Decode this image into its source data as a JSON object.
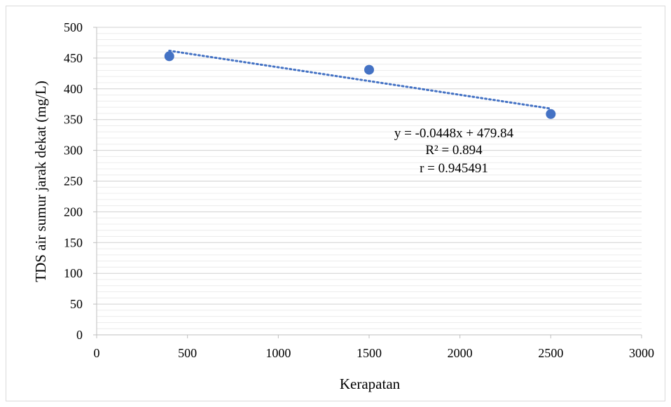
{
  "chart_data": {
    "type": "scatter",
    "title": "",
    "xlabel": "Kerapatan",
    "ylabel": "TDS air sumur jarak dekat (mg/L)",
    "xlim": [
      0,
      3000
    ],
    "ylim": [
      0,
      500
    ],
    "x_ticks": [
      0,
      500,
      1000,
      1500,
      2000,
      2500,
      3000
    ],
    "y_ticks": [
      0,
      50,
      100,
      150,
      200,
      250,
      300,
      350,
      400,
      450,
      500
    ],
    "grid": true,
    "marker_color": "#4472c4",
    "series": [
      {
        "x": [
          400,
          1500,
          2500
        ],
        "y": [
          453,
          431,
          359
        ]
      }
    ],
    "trendline": {
      "type": "linear",
      "slope": -0.0448,
      "intercept": 479.84,
      "x_range": [
        400,
        2500
      ],
      "style": "dotted",
      "color": "#4472c4"
    },
    "annotations": {
      "equation": "y = -0.0448x + 479.84",
      "r_squared": "R² = 0.894",
      "r": "r = 0.945491"
    }
  }
}
